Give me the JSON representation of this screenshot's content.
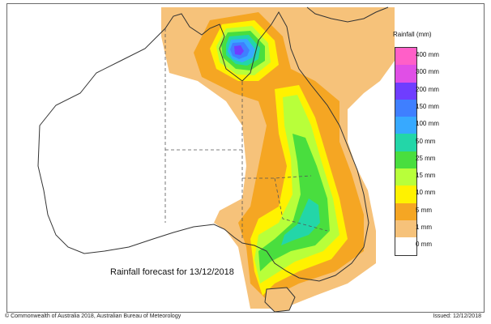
{
  "map": {
    "region": "Australia",
    "title": "Rainfall forecast for 13/12/2018"
  },
  "legend": {
    "title": "Rainfall (mm)",
    "items": [
      {
        "label": "400 mm",
        "color": "#ff5fc8"
      },
      {
        "label": "300 mm",
        "color": "#e04fe6"
      },
      {
        "label": "200 mm",
        "color": "#6f3dff"
      },
      {
        "label": "150 mm",
        "color": "#3f7fff"
      },
      {
        "label": "100 mm",
        "color": "#37a9ff"
      },
      {
        "label": "50 mm",
        "color": "#23d6a8"
      },
      {
        "label": "25 mm",
        "color": "#49de3e"
      },
      {
        "label": "15 mm",
        "color": "#b8ff3a"
      },
      {
        "label": "10 mm",
        "color": "#fff200"
      },
      {
        "label": "5 mm",
        "color": "#f5a623"
      },
      {
        "label": "1 mm",
        "color": "#f6c27a"
      },
      {
        "label": "0 mm",
        "color": "#ffffff"
      }
    ]
  },
  "footer": {
    "copyright": "© Commonwealth of Australia 2018, Australian Bureau of Meteorology",
    "issued": "Issued: 12/12/2018"
  }
}
